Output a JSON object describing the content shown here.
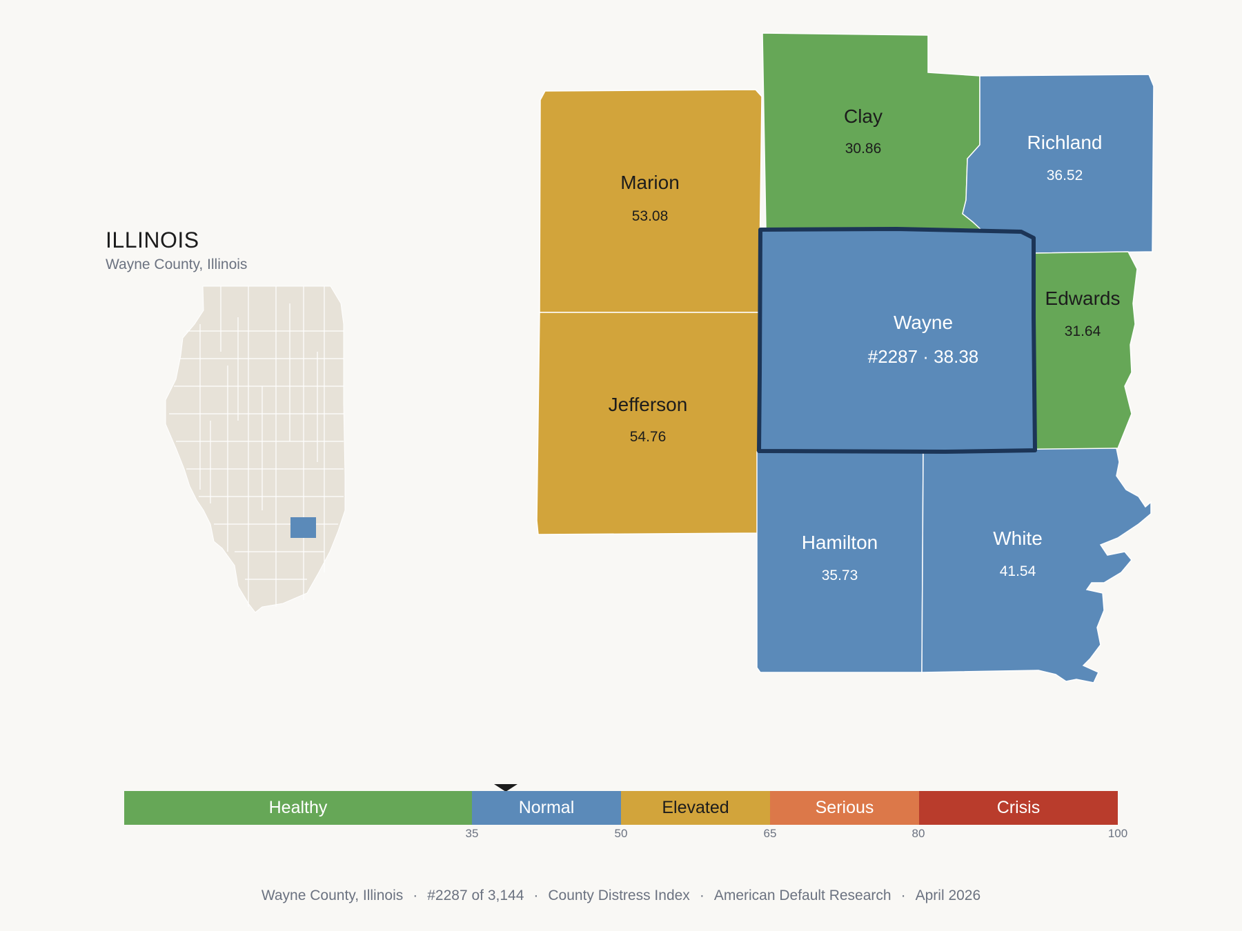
{
  "state": {
    "title": "ILLINOIS",
    "subtitle": "Wayne County, Illinois",
    "highlight_color": "#5b8ab9",
    "base_color": "#e7e2d8"
  },
  "counties": [
    {
      "name": "Marion",
      "value": "53.08",
      "color": "#d2a43b",
      "tone": "dark"
    },
    {
      "name": "Clay",
      "value": "30.86",
      "color": "#66a757",
      "tone": "dark"
    },
    {
      "name": "Richland",
      "value": "36.52",
      "color": "#5b8ab9",
      "tone": "light"
    },
    {
      "name": "Wayne",
      "value": "#2287 · 38.38",
      "color": "#5b8ab9",
      "tone": "light",
      "selected": true
    },
    {
      "name": "Edwards",
      "value": "31.64",
      "color": "#66a757",
      "tone": "dark"
    },
    {
      "name": "Jefferson",
      "value": "54.76",
      "color": "#d2a43b",
      "tone": "dark"
    },
    {
      "name": "Hamilton",
      "value": "35.73",
      "color": "#5b8ab9",
      "tone": "light"
    },
    {
      "name": "White",
      "value": "41.54",
      "color": "#5b8ab9",
      "tone": "light"
    }
  ],
  "legend": {
    "bands": [
      {
        "label": "Healthy",
        "from": 0,
        "to": 35,
        "color": "#66a757",
        "text_color": "#ffffff"
      },
      {
        "label": "Normal",
        "from": 35,
        "to": 50,
        "color": "#5b8ab9",
        "text_color": "#ffffff"
      },
      {
        "label": "Elevated",
        "from": 50,
        "to": 65,
        "color": "#d2a43b",
        "text_color": "#1c1c1c"
      },
      {
        "label": "Serious",
        "from": 65,
        "to": 80,
        "color": "#dc7849",
        "text_color": "#ffffff"
      },
      {
        "label": "Crisis",
        "from": 80,
        "to": 100,
        "color": "#b93c2c",
        "text_color": "#ffffff"
      }
    ],
    "ticks": [
      "35",
      "50",
      "65",
      "80",
      "100"
    ],
    "marker_value": 38.38
  },
  "footer": {
    "parts": [
      "Wayne County, Illinois",
      "#2287 of 3,144",
      "County Distress Index",
      "American Default Research",
      "April 2026"
    ],
    "separator": "·"
  }
}
